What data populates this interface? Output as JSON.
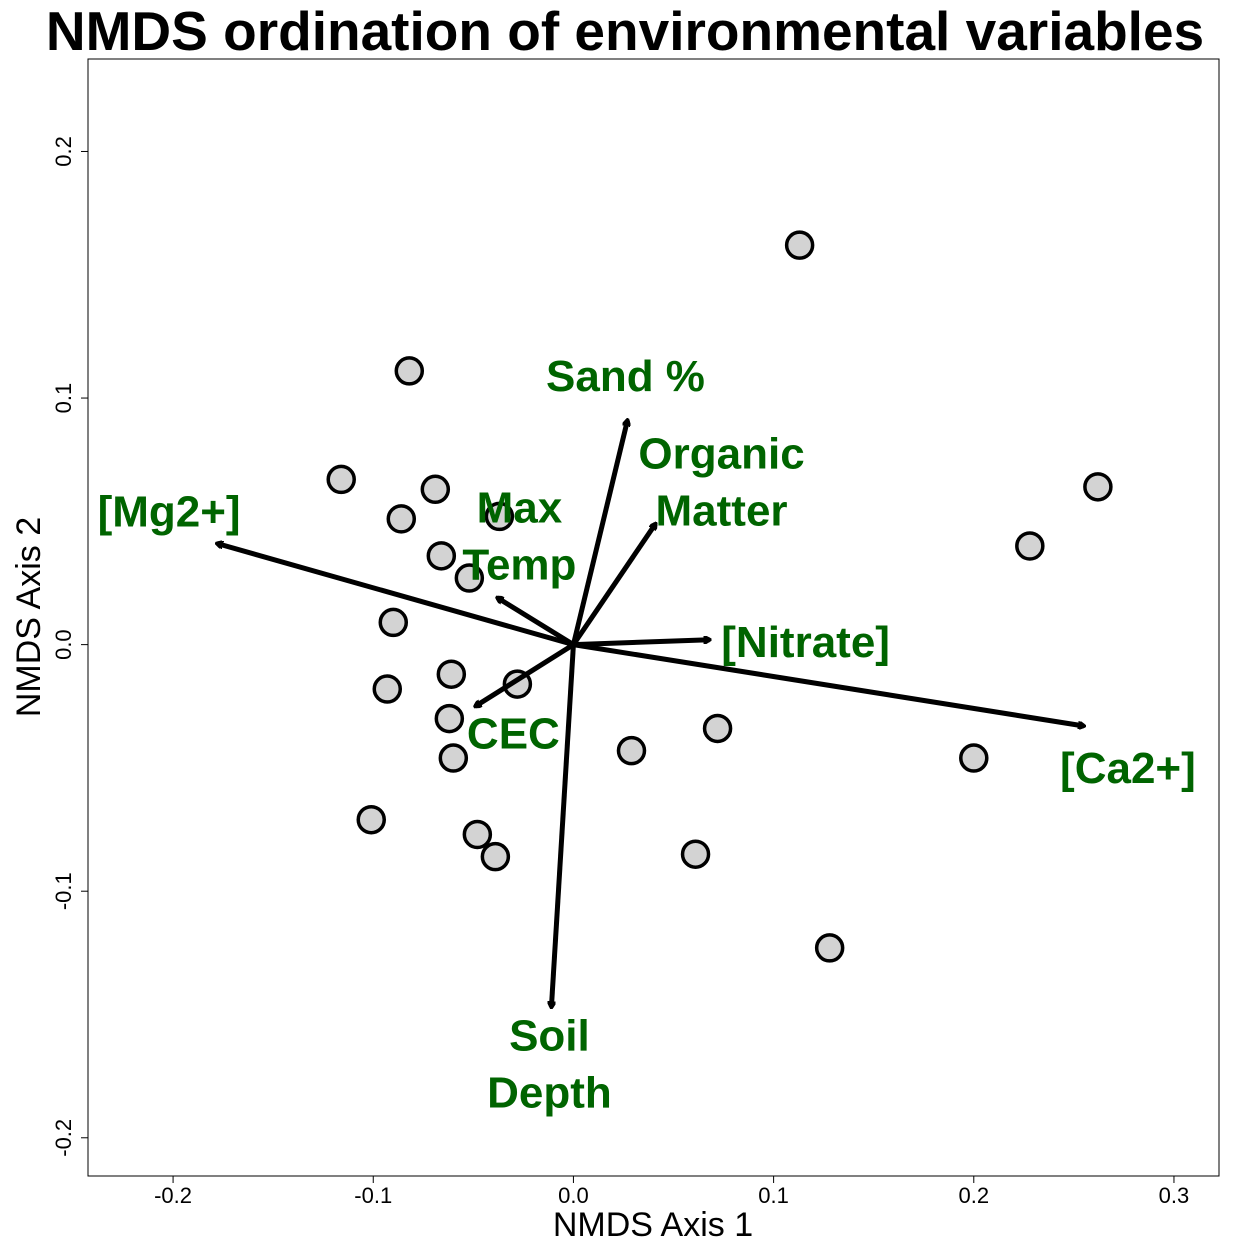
{
  "chart_data": {
    "type": "scatter",
    "title": "NMDS ordination of environmental variables",
    "xlabel": "NMDS Axis 1",
    "ylabel": "NMDS Axis 2",
    "xlim": [
      -0.2425,
      0.3225
    ],
    "ylim": [
      -0.2155,
      0.2375
    ],
    "xticks": [
      -0.2,
      -0.1,
      0.0,
      0.1,
      0.2,
      0.3
    ],
    "xtick_labels": [
      "-0.2",
      "-0.1",
      "0.0",
      "0.1",
      "0.2",
      "0.3"
    ],
    "yticks": [
      -0.2,
      -0.1,
      0.0,
      0.1,
      0.2
    ],
    "ytick_labels": [
      "-0.2",
      "-0.1",
      "0.0",
      "0.1",
      "0.2"
    ],
    "grid": false,
    "point_color": "#d3d3d3",
    "point_stroke": "#000000",
    "arrow_color": "#000000",
    "label_color": "#006400",
    "points": [
      {
        "x": 0.113,
        "y": 0.162
      },
      {
        "x": -0.082,
        "y": 0.111
      },
      {
        "x": -0.116,
        "y": 0.067
      },
      {
        "x": -0.069,
        "y": 0.063
      },
      {
        "x": -0.086,
        "y": 0.051
      },
      {
        "x": -0.037,
        "y": 0.052
      },
      {
        "x": -0.066,
        "y": 0.036
      },
      {
        "x": -0.052,
        "y": 0.027
      },
      {
        "x": -0.09,
        "y": 0.009
      },
      {
        "x": -0.061,
        "y": -0.012
      },
      {
        "x": -0.093,
        "y": -0.018
      },
      {
        "x": -0.028,
        "y": -0.016
      },
      {
        "x": -0.062,
        "y": -0.03
      },
      {
        "x": -0.06,
        "y": -0.046
      },
      {
        "x": -0.101,
        "y": -0.071
      },
      {
        "x": -0.048,
        "y": -0.077
      },
      {
        "x": -0.039,
        "y": -0.086
      },
      {
        "x": 0.029,
        "y": -0.043
      },
      {
        "x": 0.072,
        "y": -0.034
      },
      {
        "x": 0.061,
        "y": -0.085
      },
      {
        "x": 0.128,
        "y": -0.123
      },
      {
        "x": 0.2,
        "y": -0.046
      },
      {
        "x": 0.228,
        "y": 0.04
      },
      {
        "x": 0.262,
        "y": 0.064
      }
    ],
    "vectors": [
      {
        "id": "mg",
        "lines": [
          "[Mg2+]"
        ],
        "x": -0.178,
        "y": 0.041,
        "label_x": -0.202,
        "label_y": 0.054
      },
      {
        "id": "sand",
        "lines": [
          "Sand %"
        ],
        "x": 0.027,
        "y": 0.091,
        "label_x": 0.026,
        "label_y": 0.109
      },
      {
        "id": "organic",
        "lines": [
          "Organic",
          "Matter"
        ],
        "x": 0.041,
        "y": 0.049,
        "label_x": 0.074,
        "label_y": 0.066
      },
      {
        "id": "maxtemp",
        "lines": [
          "Max",
          "Temp"
        ],
        "x": -0.038,
        "y": 0.019,
        "label_x": -0.027,
        "label_y": 0.044
      },
      {
        "id": "nitrate",
        "lines": [
          "[Nitrate]"
        ],
        "x": 0.068,
        "y": 0.002,
        "label_x": 0.116,
        "label_y": 0.001
      },
      {
        "id": "ca",
        "lines": [
          "[Ca2+]"
        ],
        "x": 0.255,
        "y": -0.033,
        "label_x": 0.277,
        "label_y": -0.05
      },
      {
        "id": "cec",
        "lines": [
          "CEC"
        ],
        "x": -0.049,
        "y": -0.025,
        "label_x": -0.03,
        "label_y": -0.036
      },
      {
        "id": "soildepth",
        "lines": [
          "Soil",
          "Depth"
        ],
        "x": -0.011,
        "y": -0.147,
        "label_x": -0.012,
        "label_y": -0.17
      }
    ]
  }
}
